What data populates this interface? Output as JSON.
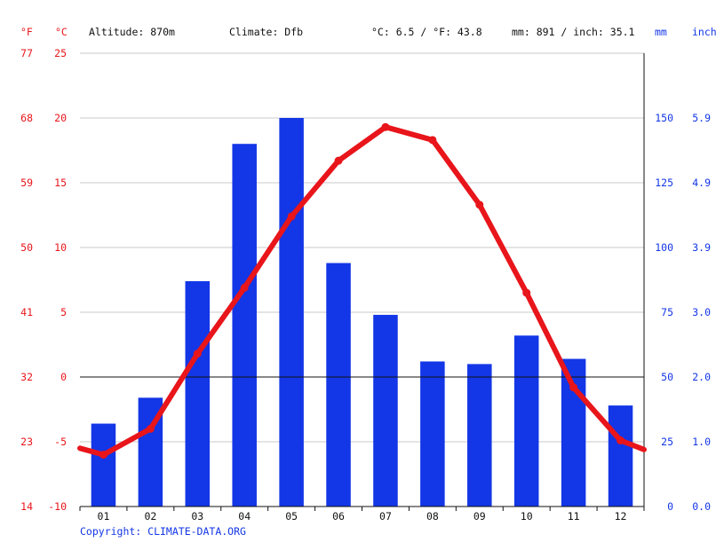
{
  "header": {
    "unit_f": "°F",
    "unit_c": "°C",
    "altitude": "Altitude: 870m",
    "climate": "Climate: Dfb",
    "temp_avg": "°C: 6.5 / °F: 43.8",
    "precip_total": "mm: 891 / inch: 35.1",
    "unit_mm": "mm",
    "unit_inch": "inch"
  },
  "footer": {
    "copyright": "Copyright: CLIMATE-DATA.ORG"
  },
  "colors": {
    "temperature": "#e8151b",
    "precipitation": "#1336e6",
    "grid": "#c8c8c8",
    "axis": "#111111"
  },
  "chart_data": {
    "type": "bar+line",
    "categories": [
      "01",
      "02",
      "03",
      "04",
      "05",
      "06",
      "07",
      "08",
      "09",
      "10",
      "11",
      "12"
    ],
    "series": [
      {
        "name": "precipitation (mm)",
        "type": "bar",
        "values": [
          32,
          42,
          87,
          140,
          150,
          94,
          74,
          56,
          55,
          66,
          57,
          39
        ]
      },
      {
        "name": "temperature (°C)",
        "type": "line",
        "values": [
          -6.0,
          -4.0,
          1.8,
          6.9,
          12.4,
          16.7,
          19.3,
          18.3,
          13.3,
          6.5,
          -0.8,
          -4.9
        ],
        "edge_values": [
          -5.5,
          -5.6
        ]
      }
    ],
    "y_left_c": {
      "ticks": [
        "-10",
        "-5",
        "0",
        "5",
        "10",
        "15",
        "20",
        "25"
      ],
      "min": -10,
      "max": 25
    },
    "y_left_f": {
      "ticks": [
        "14",
        "23",
        "32",
        "41",
        "50",
        "59",
        "68",
        "77"
      ]
    },
    "y_right_mm": {
      "ticks": [
        "0",
        "25",
        "50",
        "75",
        "100",
        "125",
        "150"
      ],
      "min": 0,
      "max": 175
    },
    "y_right_inch": {
      "ticks": [
        "0.0",
        "1.0",
        "2.0",
        "3.0",
        "3.9",
        "4.9",
        "5.9"
      ]
    },
    "grid": true
  }
}
